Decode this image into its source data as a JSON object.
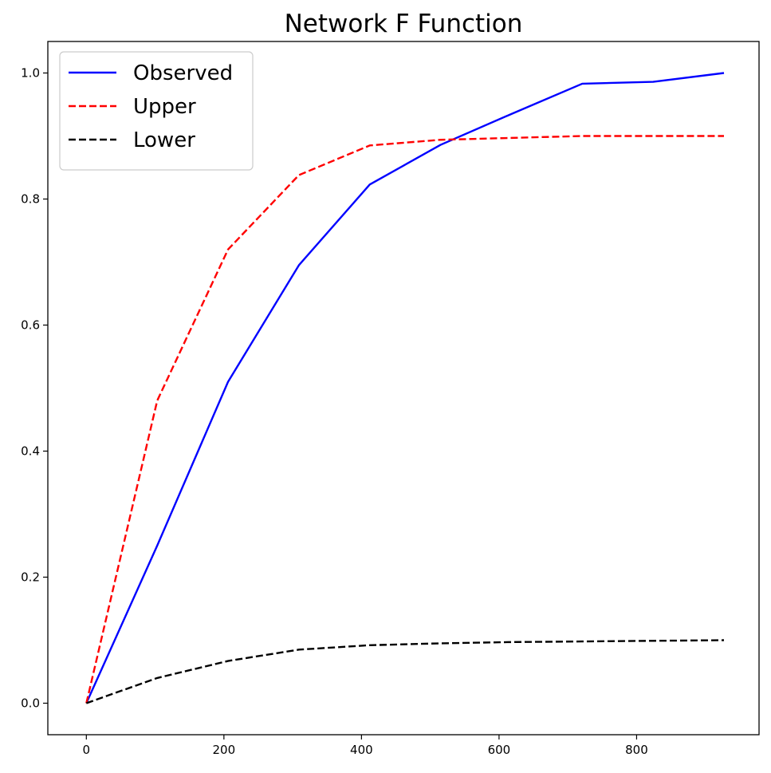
{
  "chart_data": {
    "type": "line",
    "title": "Network F Function",
    "xlabel": "",
    "ylabel": "",
    "xlim": [
      -56,
      978
    ],
    "ylim": [
      -0.05,
      1.05
    ],
    "xticks": [
      0,
      200,
      400,
      600,
      800
    ],
    "xtick_labels": [
      "0",
      "200",
      "400",
      "600",
      "800"
    ],
    "yticks": [
      0.0,
      0.2,
      0.4,
      0.6,
      0.8,
      1.0
    ],
    "ytick_labels": [
      "0.0",
      "0.2",
      "0.4",
      "0.6",
      "0.8",
      "1.0"
    ],
    "grid": false,
    "legend_position": "top-left",
    "series": [
      {
        "name": "Observed",
        "color": "#0000ff",
        "style": "solid",
        "x": [
          0,
          103,
          206,
          309,
          412,
          515,
          618,
          721,
          824,
          927
        ],
        "y": [
          0.0,
          0.25,
          0.51,
          0.695,
          0.823,
          0.886,
          0.935,
          0.983,
          0.986,
          1.0
        ]
      },
      {
        "name": "Upper",
        "color": "#ff0000",
        "style": "dashed",
        "x": [
          0,
          103,
          206,
          309,
          412,
          515,
          618,
          721,
          824,
          927
        ],
        "y": [
          0.0,
          0.48,
          0.72,
          0.838,
          0.885,
          0.894,
          0.897,
          0.9,
          0.9,
          0.9
        ]
      },
      {
        "name": "Lower",
        "color": "#000000",
        "style": "dashed",
        "x": [
          0,
          103,
          206,
          309,
          412,
          515,
          618,
          721,
          824,
          927
        ],
        "y": [
          0.0,
          0.04,
          0.067,
          0.085,
          0.092,
          0.095,
          0.097,
          0.098,
          0.099,
          0.1
        ]
      }
    ]
  }
}
